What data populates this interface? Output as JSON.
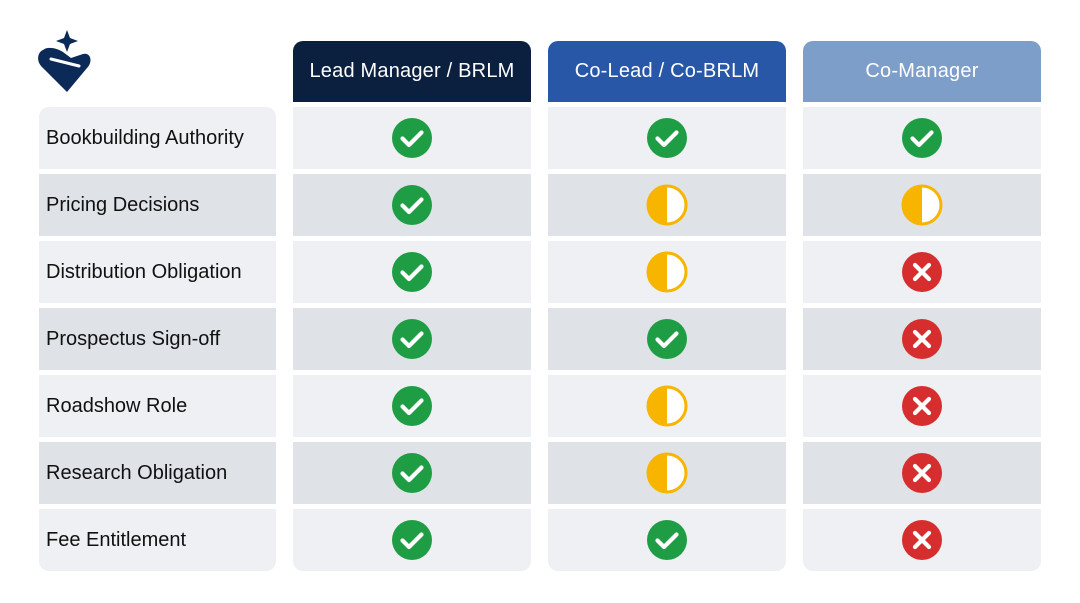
{
  "columns": [
    {
      "label": "Lead Manager / BRLM",
      "color": "#0b1f3f"
    },
    {
      "label": "Co-Lead / Co-BRLM",
      "color": "#2857a8"
    },
    {
      "label": "Co-Manager",
      "color": "#7c9ec8"
    }
  ],
  "rows": [
    {
      "label": "Bookbuilding Authority",
      "values": [
        "check-icon",
        "check-icon",
        "check-icon"
      ]
    },
    {
      "label": "Pricing Decisions",
      "values": [
        "check-icon",
        "half-icon",
        "half-icon"
      ]
    },
    {
      "label": "Distribution Obligation",
      "values": [
        "check-icon",
        "half-icon",
        "cross-icon"
      ]
    },
    {
      "label": "Prospectus Sign-off",
      "values": [
        "check-icon",
        "check-icon",
        "cross-icon"
      ]
    },
    {
      "label": "Roadshow Role",
      "values": [
        "check-icon",
        "half-icon",
        "cross-icon"
      ]
    },
    {
      "label": "Research Obligation",
      "values": [
        "check-icon",
        "half-icon",
        "cross-icon"
      ]
    },
    {
      "label": "Fee Entitlement",
      "values": [
        "check-icon",
        "check-icon",
        "cross-icon"
      ]
    }
  ],
  "colors": {
    "check": "#1f9d45",
    "half": "#f7b500",
    "cross": "#d62e2e",
    "logo": "#0b2a57"
  }
}
